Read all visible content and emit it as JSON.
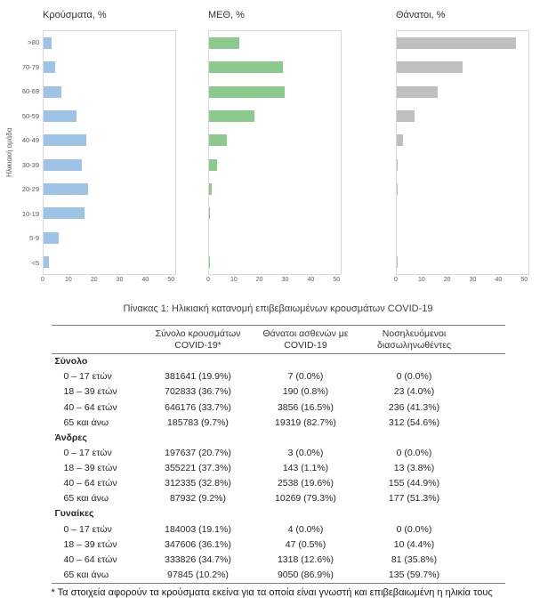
{
  "figure": {
    "y_axis_label": "Ηλικιακή ομάδα",
    "age_groups": [
      ">80",
      "70-79",
      "60-69",
      "50-59",
      "40-49",
      "30-39",
      "20-29",
      "10-19",
      "5-9",
      "<5"
    ],
    "x_ticks": [
      0,
      10,
      20,
      30,
      40,
      50
    ],
    "axis_max": 52
  },
  "chart_data": [
    {
      "type": "bar",
      "orientation": "horizontal",
      "title": "Κρούσματα, %",
      "color": "#9DC3E6",
      "categories": [
        ">80",
        "70-79",
        "60-69",
        "50-59",
        "40-49",
        "30-39",
        "20-29",
        "10-19",
        "5-9",
        "<5"
      ],
      "values": [
        3,
        4.5,
        7,
        13,
        17,
        15,
        17.5,
        16,
        6,
        2
      ],
      "xlim": [
        0,
        50
      ],
      "ylabel": "Ηλικιακή ομάδα",
      "grid": false,
      "legend": "none"
    },
    {
      "type": "bar",
      "orientation": "horizontal",
      "title": "ΜΕΘ, %",
      "color": "#8CC98C",
      "categories": [
        ">80",
        "70-79",
        "60-69",
        "50-59",
        "40-49",
        "30-39",
        "20-29",
        "10-19",
        "5-9",
        "<5"
      ],
      "values": [
        12,
        29,
        30,
        18,
        7,
        3,
        1,
        0.4,
        0,
        0.4
      ],
      "xlim": [
        0,
        50
      ],
      "grid": false,
      "legend": "none"
    },
    {
      "type": "bar",
      "orientation": "horizontal",
      "title": "Θάνατοι, %",
      "color": "#BFBFBF",
      "categories": [
        ">80",
        "70-79",
        "60-69",
        "50-59",
        "40-49",
        "30-39",
        "20-29",
        "10-19",
        "5-9",
        "<5"
      ],
      "values": [
        47,
        26,
        16,
        7,
        2.4,
        0.5,
        0.2,
        0,
        0,
        0.2
      ],
      "xlim": [
        0,
        50
      ],
      "grid": false,
      "legend": "none"
    }
  ],
  "table": {
    "caption": "Πίνακας 1: Ηλικιακή κατανομή επιβεβαιωμένων κρουσμάτων COVID-19",
    "col_headers": [
      "Σύνολο κρουσμάτων\nCOVID-19*",
      "Θάνατοι ασθενών με\nCOVID-19",
      "Νοσηλευόμενοι\nδιασωληνωθέντες"
    ],
    "sections": [
      {
        "label": "Σύνολο",
        "rows": [
          {
            "label": "0 – 17 ετών",
            "cells": [
              "381641 (19.9%)",
              "7 (0.0%)",
              "0 (0.0%)"
            ]
          },
          {
            "label": "18 – 39 ετών",
            "cells": [
              "702833 (36.7%)",
              "190 (0.8%)",
              "23 (4.0%)"
            ]
          },
          {
            "label": "40 – 64 ετών",
            "cells": [
              "646176 (33.7%)",
              "3856 (16.5%)",
              "236 (41.3%)"
            ]
          },
          {
            "label": "65 και άνω",
            "cells": [
              "185783 (9.7%)",
              "19319 (82.7%)",
              "312 (54.6%)"
            ]
          }
        ]
      },
      {
        "label": "Άνδρες",
        "rows": [
          {
            "label": "0 – 17 ετών",
            "cells": [
              "197637 (20.7%)",
              "3 (0.0%)",
              "0 (0.0%)"
            ]
          },
          {
            "label": "18 – 39 ετών",
            "cells": [
              "355221 (37.3%)",
              "143 (1.1%)",
              "13 (3.8%)"
            ]
          },
          {
            "label": "40 – 64 ετών",
            "cells": [
              "312335 (32.8%)",
              "2538 (19.6%)",
              "155 (44.9%)"
            ]
          },
          {
            "label": "65 και άνω",
            "cells": [
              "87932 (9.2%)",
              "10269 (79.3%)",
              "177 (51.3%)"
            ]
          }
        ]
      },
      {
        "label": "Γυναίκες",
        "rows": [
          {
            "label": "0 – 17 ετών",
            "cells": [
              "184003 (19.1%)",
              "4 (0.0%)",
              "0 (0.0%)"
            ]
          },
          {
            "label": "18 – 39 ετών",
            "cells": [
              "347606 (36.1%)",
              "47 (0.5%)",
              "10 (4.4%)"
            ]
          },
          {
            "label": "40 – 64 ετών",
            "cells": [
              "333826 (34.7%)",
              "1318 (12.6%)",
              "81 (35.8%)"
            ]
          },
          {
            "label": "65 και άνω",
            "cells": [
              "97845 (10.2%)",
              "9050 (86.9%)",
              "135 (59.7%)"
            ]
          }
        ]
      }
    ],
    "footnote": "* Τα στοιχεία αφορούν τα κρούσματα εκείνα για τα οποία είναι γνωστή και επιβεβαιωμένη η ηλικία τους"
  }
}
